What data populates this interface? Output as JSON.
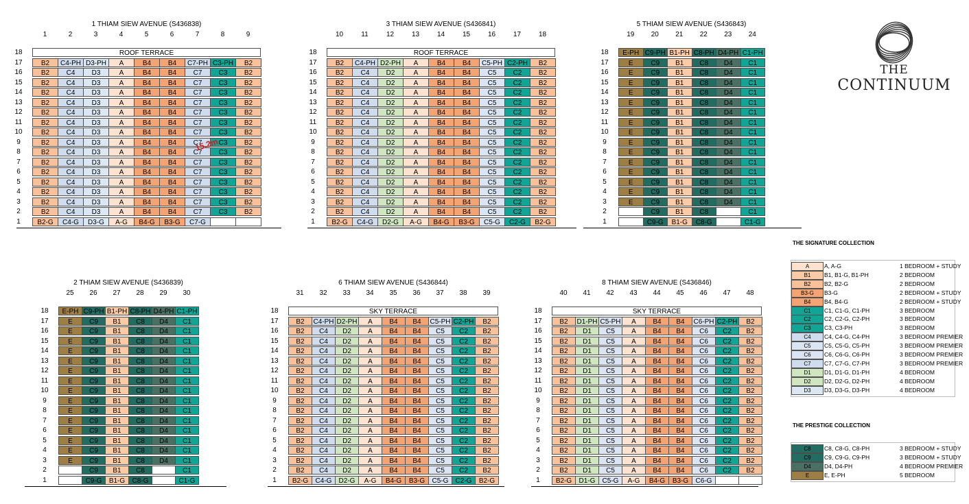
{
  "colors": {
    "A": "#fde3cf",
    "B1": "#fbcaa6",
    "B2": "#f8c19a",
    "B3": "#f4a472",
    "B4": "#f4a472",
    "C": "#12a595",
    "C4": "#cfdcee",
    "C5": "#dbe4f2",
    "C6": "#dbe4f2",
    "C7": "#cfdcee",
    "D1": "#cfe6c1",
    "D2": "#cfe6c1",
    "D3": "#dbe8f3",
    "C8": "#236c62",
    "C9": "#236c62",
    "D4": "#4a7063",
    "E": "#9d7e45"
  },
  "annotation": "15.2m",
  "logo": {
    "line1": "THE",
    "line2": "CONTINUUM",
    "icon": "continuum-swirl-logo"
  },
  "blocks": [
    {
      "title": "1 THIAM SIEW AVENUE (S436838)",
      "stacks": [
        "1",
        "2",
        "3",
        "4",
        "5",
        "6",
        "7",
        "8",
        "9"
      ],
      "terrace": "ROOF TERRACE",
      "top": "17",
      "topRow": [
        "B2",
        "C4-PH",
        "D3-PH",
        "A",
        "B4",
        "B4",
        "C7-PH",
        "C3-PH",
        "B2"
      ],
      "typical": [
        "B2",
        "C4",
        "D3",
        "A",
        "B4",
        "B4",
        "C7",
        "C3",
        "B2"
      ],
      "typicalFrom": "16",
      "typicalTo": "2",
      "groundRow": [
        "B2-G",
        "C4-G",
        "D3-G",
        "A-G",
        "B4-G",
        "B3-G",
        "C7-G",
        "",
        ""
      ]
    },
    {
      "title": "3 THIAM SIEW AVENUE (S436841)",
      "stacks": [
        "10",
        "11",
        "12",
        "13",
        "14",
        "15",
        "16",
        "17",
        "18"
      ],
      "terrace": "ROOF TERRACE",
      "top": "17",
      "topRow": [
        "B2",
        "C4-PH",
        "D2-PH",
        "A",
        "B4",
        "B4",
        "C5-PH",
        "C2-PH",
        "B2"
      ],
      "typical": [
        "B2",
        "C4",
        "D2",
        "A",
        "B4",
        "B4",
        "C5",
        "C2",
        "B2"
      ],
      "typicalFrom": "16",
      "typicalTo": "2",
      "groundRow": [
        "B2-G",
        "C4-G",
        "D2-G",
        "A-G",
        "B4-G",
        "B3-G",
        "C5-G",
        "C2-G",
        "B2-G"
      ]
    },
    {
      "title": "5 THIAM SIEW AVENUE (S436843)",
      "stacks": [
        "19",
        "20",
        "21",
        "22",
        "23",
        "24"
      ],
      "terrace": "",
      "top": "18",
      "topRow": [
        "E-PH",
        "C9-PH",
        "B1-PH",
        "C8-PH",
        "D4-PH",
        "C1-PH"
      ],
      "typical": [
        "E",
        "C9",
        "B1",
        "C8",
        "D4",
        "C1"
      ],
      "typicalFrom": "17",
      "typicalTo": "3",
      "row2": [
        "",
        "C9",
        "B1",
        "C8",
        "",
        "C1"
      ],
      "groundRow": [
        "",
        "C9-G",
        "B1-G",
        "C8-G",
        "",
        "C1-G"
      ]
    },
    {
      "title": "2 THIAM SIEW AVENUE (S436839)",
      "stacks": [
        "25",
        "26",
        "27",
        "28",
        "29",
        "30"
      ],
      "terrace": "",
      "top": "18",
      "topRow": [
        "E-PH",
        "C9-PH",
        "B1-PH",
        "C8-PH",
        "D4-PH",
        "C1-PH"
      ],
      "typical": [
        "E",
        "C9",
        "B1",
        "C8",
        "D4",
        "C1"
      ],
      "typicalFrom": "17",
      "typicalTo": "3",
      "row2": [
        "",
        "C9",
        "B1",
        "C8",
        "",
        "C1"
      ],
      "groundRow": [
        "",
        "C9-G",
        "B1-G",
        "C8-G",
        "",
        "C1-G"
      ]
    },
    {
      "title": "6 THIAM SIEW AVENUE (S436844)",
      "stacks": [
        "31",
        "32",
        "33",
        "34",
        "35",
        "36",
        "37",
        "38",
        "39"
      ],
      "terrace": "SKY TERRACE",
      "top": "17",
      "topRow": [
        "B2",
        "C4-PH",
        "D2-PH",
        "A",
        "B4",
        "B4",
        "C5-PH",
        "C2-PH",
        "B2"
      ],
      "typical": [
        "B2",
        "C4",
        "D2",
        "A",
        "B4",
        "B4",
        "C5",
        "C2",
        "B2"
      ],
      "typicalFrom": "16",
      "typicalTo": "2",
      "groundRow": [
        "B2-G",
        "C4-G",
        "D2-G",
        "A-G",
        "B4-G",
        "B3-G",
        "C5-G",
        "C2-G",
        "B2-G"
      ]
    },
    {
      "title": "8 THIAM SIEW AVENUE (S436846)",
      "stacks": [
        "40",
        "41",
        "42",
        "43",
        "44",
        "45",
        "46",
        "47",
        "48"
      ],
      "terrace": "SKY TERRACE",
      "top": "17",
      "topRow": [
        "B2",
        "D1-PH",
        "C5-PH",
        "A",
        "B4",
        "B4",
        "C6-PH",
        "C2-PH",
        "B2"
      ],
      "typical": [
        "B2",
        "D1",
        "C5",
        "A",
        "B4",
        "B4",
        "C6",
        "C2",
        "B2"
      ],
      "typicalFrom": "16",
      "typicalTo": "2",
      "groundRow": [
        "B2-G",
        "D1-G",
        "C5-G",
        "A-G",
        "B4-G",
        "B3-G",
        "C6-G",
        "",
        ""
      ]
    }
  ],
  "legend": {
    "signature_title": "THE SIGNATURE COLLECTION",
    "signature": [
      {
        "code": "A",
        "codes": "A, A-G",
        "desc": "1 BEDROOM + STUDY",
        "color": "A"
      },
      {
        "code": "B1",
        "codes": "B1, B1-G, B1-PH",
        "desc": "2 BEDROOM",
        "color": "B1"
      },
      {
        "code": "B2",
        "codes": "B2, B2-G",
        "desc": "2 BEDROOM",
        "color": "B2"
      },
      {
        "code": "B3-G",
        "codes": "B3-G",
        "desc": "2 BEDROOM + STUDY",
        "color": "B3"
      },
      {
        "code": "B4",
        "codes": "B4, B4-G",
        "desc": "2 BEDROOM + STUDY",
        "color": "B4"
      },
      {
        "code": "C1",
        "codes": "C1, C1-G, C1-PH",
        "desc": "3 BEDROOM",
        "color": "C"
      },
      {
        "code": "C2",
        "codes": "C2, C2-G, C2-PH",
        "desc": "3 BEDROOM",
        "color": "C"
      },
      {
        "code": "C3",
        "codes": "C3, C3-PH",
        "desc": "3 BEDROOM",
        "color": "C"
      },
      {
        "code": "C4",
        "codes": "C4, C4-G, C4-PH",
        "desc": "3 BEDROOM PREMIER",
        "color": "C4"
      },
      {
        "code": "C5",
        "codes": "C5, C5-G, C5-PH",
        "desc": "3 BEDROOM PREMIER",
        "color": "C5"
      },
      {
        "code": "C6",
        "codes": "C6, C6-G, C6-PH",
        "desc": "3 BEDROOM PREMIER",
        "color": "C6"
      },
      {
        "code": "C7",
        "codes": "C7, C7-G, C7-PH",
        "desc": "3 BEDROOM PREMIER",
        "color": "C7"
      },
      {
        "code": "D1",
        "codes": "D1, D1-G, D1-PH",
        "desc": "4 BEDROOM",
        "color": "D1"
      },
      {
        "code": "D2",
        "codes": "D2, D2-G, D2-PH",
        "desc": "4 BEDROOM",
        "color": "D2"
      },
      {
        "code": "D3",
        "codes": "D3, D3-G, D3-PH",
        "desc": "4 BEDROOM",
        "color": "D3"
      }
    ],
    "prestige_title": "THE PRESTIGE COLLECTION",
    "prestige": [
      {
        "code": "C8",
        "codes": "C8, C8-G, C8-PH",
        "desc": "3 BEDROOM + STUDY",
        "color": "C8"
      },
      {
        "code": "C9",
        "codes": "C9, C9-G, C9-PH",
        "desc": "3 BEDROOM + STUDY",
        "color": "C9"
      },
      {
        "code": "D4",
        "codes": "D4, D4-PH",
        "desc": "4 BEDROOM PREMIER",
        "color": "D4"
      },
      {
        "code": "E",
        "codes": "E, E-PH",
        "desc": "5 BEDROOM",
        "color": "E"
      }
    ]
  }
}
